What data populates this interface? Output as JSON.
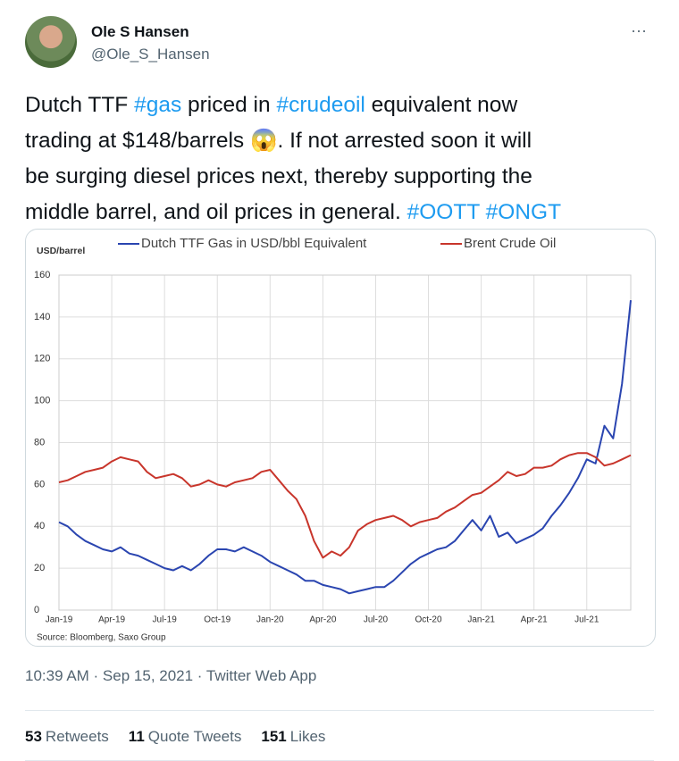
{
  "tweet": {
    "name": "Ole S Hansen",
    "handle": "@Ole_S_Hansen",
    "more": "···",
    "lines": [
      [
        {
          "text": "Dutch TTF "
        },
        {
          "text": "#gas",
          "hashtag": true
        },
        {
          "text": " priced in "
        },
        {
          "text": "#crudeoil",
          "hashtag": true
        },
        {
          "text": " equivalent now"
        }
      ],
      [
        {
          "text": "trading at $148/barrels 😱. If not arrested soon it will"
        }
      ],
      [
        {
          "text": "be surging diesel prices next, thereby supporting the"
        }
      ],
      [
        {
          "text": "middle barrel, and oil prices in general. "
        },
        {
          "text": "#OOTT",
          "hashtag": true
        },
        {
          "text": " "
        },
        {
          "text": "#ONGT",
          "hashtag": true
        }
      ]
    ],
    "timestamp": "10:39 AM · Sep 15, 2021 · Twitter Web App",
    "stats": [
      {
        "count": 53,
        "label": "Retweets"
      },
      {
        "count": 11,
        "label": "Quote Tweets"
      },
      {
        "count": 151,
        "label": "Likes"
      }
    ]
  },
  "chart_data": {
    "type": "line",
    "ylabel": "USD/barrel",
    "source": "Source: Bloomberg, Saxo Group",
    "grid": true,
    "x": [
      0,
      0.5,
      1,
      1.5,
      2,
      2.5,
      3,
      3.5,
      4,
      4.5,
      5,
      5.5,
      6,
      6.5,
      7,
      7.5,
      8,
      8.5,
      9,
      9.5,
      10,
      10.5,
      11,
      11.5,
      12,
      12.5,
      13,
      13.5,
      14,
      14.5,
      15,
      15.5,
      16,
      16.5,
      17,
      17.5,
      18,
      18.5,
      19,
      19.5,
      20,
      20.5,
      21,
      21.5,
      22,
      22.5,
      23,
      23.5,
      24,
      24.5,
      25,
      25.5,
      26,
      26.5,
      27,
      27.5,
      28,
      28.5,
      29,
      29.5,
      30,
      30.5,
      31,
      31.5,
      32,
      32.5
    ],
    "series": [
      {
        "name": "Dutch TTF Gas in USD/bbl Equivalent",
        "color": "#2a45b0",
        "values": [
          42,
          40,
          36,
          33,
          31,
          29,
          28,
          30,
          27,
          26,
          24,
          22,
          20,
          19,
          21,
          19,
          22,
          26,
          29,
          29,
          28,
          30,
          28,
          26,
          23,
          21,
          19,
          17,
          14,
          14,
          12,
          11,
          10,
          8,
          9,
          10,
          11,
          11,
          14,
          18,
          22,
          25,
          27,
          29,
          30,
          33,
          38,
          43,
          38,
          45,
          35,
          37,
          32,
          34,
          36,
          39,
          45,
          50,
          56,
          63,
          72,
          70,
          88,
          82,
          108,
          148
        ]
      },
      {
        "name": "Brent Crude Oil",
        "color": "#c8352b",
        "values": [
          61,
          62,
          64,
          66,
          67,
          68,
          71,
          73,
          72,
          71,
          66,
          63,
          64,
          65,
          63,
          59,
          60,
          62,
          60,
          59,
          61,
          62,
          63,
          66,
          67,
          62,
          57,
          53,
          45,
          33,
          25,
          28,
          26,
          30,
          38,
          41,
          43,
          44,
          45,
          43,
          40,
          42,
          43,
          44,
          47,
          49,
          52,
          55,
          56,
          59,
          62,
          66,
          64,
          65,
          68,
          68,
          69,
          72,
          74,
          75,
          75,
          73,
          69,
          70,
          72,
          74
        ]
      }
    ],
    "xlim": [
      0,
      32.5
    ],
    "xticks": [
      {
        "value": 0,
        "label": "Jan-19"
      },
      {
        "value": 3,
        "label": "Apr-19"
      },
      {
        "value": 6,
        "label": "Jul-19"
      },
      {
        "value": 9,
        "label": "Oct-19"
      },
      {
        "value": 12,
        "label": "Jan-20"
      },
      {
        "value": 15,
        "label": "Apr-20"
      },
      {
        "value": 18,
        "label": "Jul-20"
      },
      {
        "value": 21,
        "label": "Oct-20"
      },
      {
        "value": 24,
        "label": "Jan-21"
      },
      {
        "value": 27,
        "label": "Apr-21"
      },
      {
        "value": 30,
        "label": "Jul-21"
      }
    ],
    "ylim": [
      0,
      160
    ],
    "yticks": [
      0,
      20,
      40,
      60,
      80,
      100,
      120,
      140,
      160
    ]
  }
}
